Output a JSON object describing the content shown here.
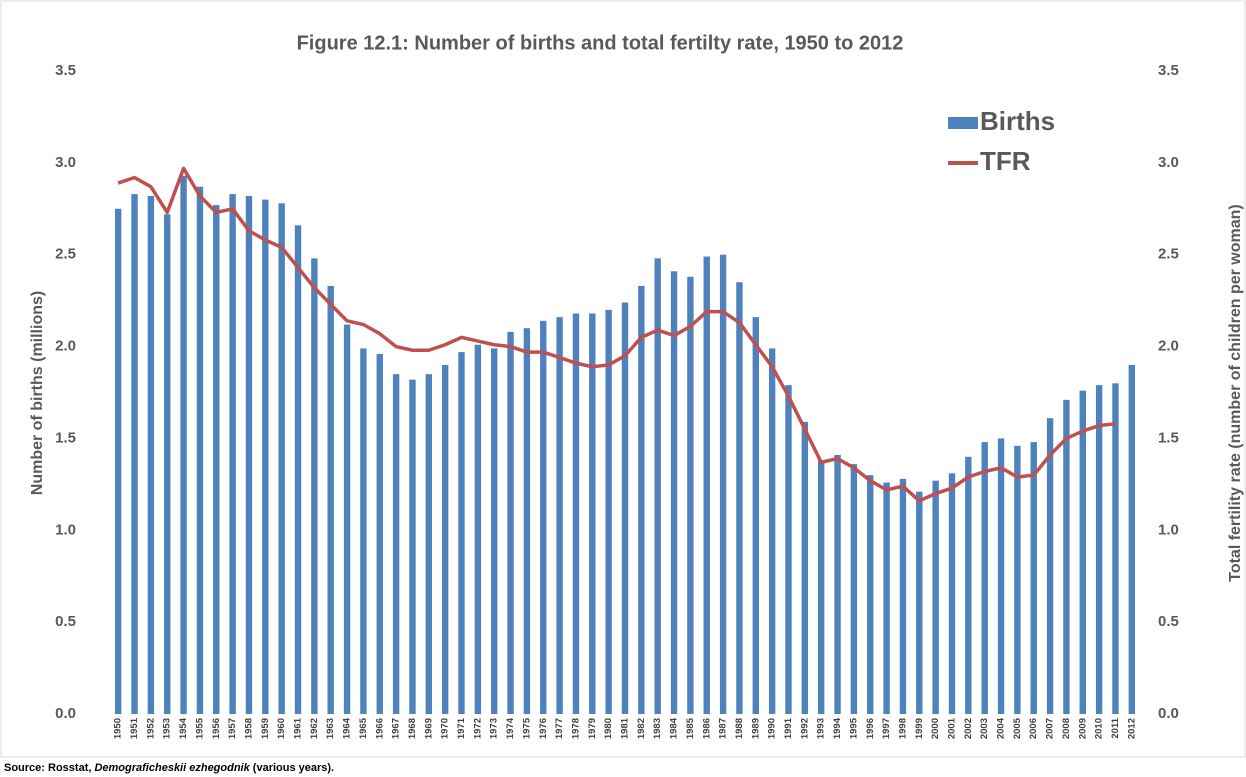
{
  "chart_data": {
    "type": "bar-line",
    "title": "Figure 12.1: Number of births and total fertilty rate, 1950 to 2012",
    "y_label": "Number of births (millions)",
    "y2_label": "Total fertility rate (number of children per woman)",
    "source": {
      "prefix": "Source: Rosstat, ",
      "italic": "Demograficheskii ezhegodnik",
      "suffix": " (various years)."
    },
    "legend": "top-right",
    "categories": [
      "1950",
      "1951",
      "1952",
      "1953",
      "1954",
      "1955",
      "1956",
      "1957",
      "1958",
      "1959",
      "1960",
      "1961",
      "1962",
      "1963",
      "1964",
      "1965",
      "1966",
      "1967",
      "1968",
      "1969",
      "1970",
      "1971",
      "1972",
      "1973",
      "1974",
      "1975",
      "1976",
      "1977",
      "1978",
      "1979",
      "1980",
      "1981",
      "1982",
      "1983",
      "1984",
      "1985",
      "1986",
      "1987",
      "1988",
      "1989",
      "1990",
      "1991",
      "1992",
      "1993",
      "1994",
      "1995",
      "1996",
      "1997",
      "1998",
      "1999",
      "2000",
      "2001",
      "2002",
      "2003",
      "2004",
      "2005",
      "2006",
      "2007",
      "2008",
      "2009",
      "2010",
      "2011",
      "2012"
    ],
    "series": [
      {
        "name": "Births",
        "type": "bar",
        "color": "#4f81bd",
        "values": [
          2.75,
          2.83,
          2.82,
          2.72,
          2.93,
          2.87,
          2.77,
          2.83,
          2.82,
          2.8,
          2.78,
          2.66,
          2.48,
          2.33,
          2.12,
          1.99,
          1.96,
          1.85,
          1.82,
          1.85,
          1.9,
          1.97,
          2.01,
          1.99,
          2.08,
          2.1,
          2.14,
          2.16,
          2.18,
          2.18,
          2.2,
          2.24,
          2.33,
          2.48,
          2.41,
          2.38,
          2.49,
          2.5,
          2.35,
          2.16,
          1.99,
          1.79,
          1.59,
          1.38,
          1.41,
          1.36,
          1.3,
          1.26,
          1.28,
          1.21,
          1.27,
          1.31,
          1.4,
          1.48,
          1.5,
          1.46,
          1.48,
          1.61,
          1.71,
          1.76,
          1.79,
          1.8,
          1.9
        ]
      },
      {
        "name": "TFR",
        "type": "line",
        "axis": "y2",
        "color": "#c0504d",
        "values": [
          2.89,
          2.92,
          2.87,
          2.73,
          2.97,
          2.82,
          2.73,
          2.75,
          2.63,
          2.58,
          2.54,
          2.43,
          2.32,
          2.23,
          2.14,
          2.12,
          2.07,
          2.0,
          1.98,
          1.98,
          2.01,
          2.05,
          2.03,
          2.01,
          2.0,
          1.97,
          1.97,
          1.94,
          1.91,
          1.89,
          1.9,
          1.95,
          2.05,
          2.09,
          2.06,
          2.11,
          2.19,
          2.19,
          2.13,
          2.01,
          1.89,
          1.73,
          1.55,
          1.37,
          1.39,
          1.34,
          1.27,
          1.22,
          1.24,
          1.16,
          1.2,
          1.23,
          1.29,
          1.32,
          1.34,
          1.29,
          1.3,
          1.41,
          1.5,
          1.54,
          1.57,
          1.58,
          null
        ]
      }
    ],
    "ylim": [
      0,
      3.5
    ],
    "yticks": [
      {
        "value": 0,
        "label": "0.0"
      },
      0.5,
      {
        "value": 1,
        "label": "1.0"
      },
      1.5,
      {
        "value": 2,
        "label": "2.0"
      },
      2.5,
      {
        "value": 3,
        "label": "3.0"
      },
      3.5
    ],
    "y2lim": [
      0,
      3.5
    ],
    "y2ticks": [
      {
        "value": 0,
        "label": "0.0"
      },
      0.5,
      {
        "value": 1,
        "label": "1.0"
      },
      1.5,
      {
        "value": 2,
        "label": "2.0"
      },
      2.5,
      {
        "value": 3,
        "label": "3.0"
      },
      3.5
    ]
  }
}
